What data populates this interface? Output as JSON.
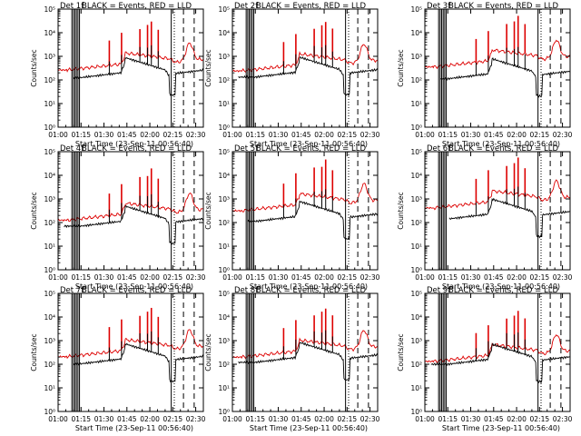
{
  "figure": {
    "legend_text": "BLACK = Events, RED = LLD",
    "xlabel": "Start Time (23-Sep-11 00:56:40)",
    "ylabel": "Counts/sec"
  },
  "colors": {
    "events": "#000000",
    "lld": "#dd0000",
    "axes": "#000000"
  },
  "chart_data": [
    {
      "type": "line",
      "title": "Det 1f",
      "events_start_min": 6,
      "lld_base": 2.42,
      "events_base": 2.1,
      "xlabel": "Start Time (23-Sep-11 00:56:40)",
      "ylabel": "Counts/sec",
      "xlim": [
        60,
        155
      ],
      "ylim_log10": [
        0,
        5
      ],
      "xticks": [
        60,
        75,
        90,
        105,
        120,
        135,
        150
      ],
      "xtick_labels": [
        "01:00",
        "01:15",
        "01:30",
        "01:45",
        "02:00",
        "02:15",
        "02:30"
      ],
      "ytick_labels": [
        "10⁰",
        "10¹",
        "10²",
        "10³",
        "10⁴",
        "10⁵"
      ],
      "solid_markers": [
        69,
        70,
        71,
        72,
        73,
        74,
        134
      ],
      "dashed_markers": [
        142,
        149
      ],
      "dotted_marker": 136,
      "series": [
        {
          "name": "Events",
          "color": "#000000",
          "values": "per-panel trace (log10 counts/sec)"
        },
        {
          "name": "LLD",
          "color": "#dd0000",
          "values": "per-panel trace (log10 counts/sec)"
        }
      ]
    },
    {
      "type": "line",
      "title": "Det 2f",
      "events_start_min": 0,
      "lld_base": 2.38,
      "events_base": 2.12,
      "xlabel": "Start Time (23-Sep-11 00:56:40)",
      "ylabel": "Counts/sec",
      "xlim": [
        60,
        155
      ],
      "ylim_log10": [
        0,
        5
      ],
      "xticks": [
        60,
        75,
        90,
        105,
        120,
        135,
        150
      ],
      "xtick_labels": [
        "01:00",
        "01:15",
        "01:30",
        "01:45",
        "02:00",
        "02:15",
        "02:30"
      ],
      "ytick_labels": [
        "10⁰",
        "10¹",
        "10²",
        "10³",
        "10⁴",
        "10⁵"
      ],
      "solid_markers": [
        69,
        70,
        71,
        72,
        73,
        74,
        134
      ],
      "dashed_markers": [
        142,
        149
      ],
      "dotted_marker": 136,
      "series": [
        {
          "name": "Events",
          "color": "#000000",
          "values": "per-panel trace (log10 counts/sec)"
        },
        {
          "name": "LLD",
          "color": "#dd0000",
          "values": "per-panel trace (log10 counts/sec)"
        }
      ]
    },
    {
      "type": "line",
      "title": "Det 3f",
      "events_start_min": 6,
      "lld_base": 2.55,
      "events_base": 2.05,
      "xlabel": "Start Time (23-Sep-11 00:56:40)",
      "ylabel": "Counts/sec",
      "xlim": [
        60,
        155
      ],
      "ylim_log10": [
        0,
        5
      ],
      "xticks": [
        60,
        75,
        90,
        105,
        120,
        135,
        150
      ],
      "xtick_labels": [
        "01:00",
        "01:15",
        "01:30",
        "01:45",
        "02:00",
        "02:15",
        "02:30"
      ],
      "ytick_labels": [
        "10⁰",
        "10¹",
        "10²",
        "10³",
        "10⁴",
        "10⁵"
      ],
      "solid_markers": [
        69,
        70,
        71,
        72,
        73,
        74,
        134
      ],
      "dashed_markers": [
        142,
        149
      ],
      "dotted_marker": 136,
      "series": [
        {
          "name": "Events",
          "color": "#000000",
          "values": "per-panel trace (log10 counts/sec)"
        },
        {
          "name": "LLD",
          "color": "#dd0000",
          "values": "per-panel trace (log10 counts/sec)"
        }
      ]
    },
    {
      "type": "line",
      "title": "Det 4f",
      "events_start_min": 0,
      "lld_base": 2.1,
      "events_base": 1.85,
      "xlabel": "Start Time (23-Sep-11 00:56:40)",
      "ylabel": "Counts/sec",
      "xlim": [
        60,
        155
      ],
      "ylim_log10": [
        0,
        5
      ],
      "xticks": [
        60,
        75,
        90,
        105,
        120,
        135,
        150
      ],
      "xtick_labels": [
        "01:00",
        "01:15",
        "01:30",
        "01:45",
        "02:00",
        "02:15",
        "02:30"
      ],
      "ytick_labels": [
        "10⁰",
        "10¹",
        "10²",
        "10³",
        "10⁴",
        "10⁵"
      ],
      "solid_markers": [
        69,
        70,
        71,
        72,
        73,
        74,
        134
      ],
      "dashed_markers": [
        142,
        149
      ],
      "dotted_marker": 136,
      "series": [
        {
          "name": "Events",
          "color": "#000000",
          "values": "per-panel trace (log10 counts/sec)"
        },
        {
          "name": "LLD",
          "color": "#dd0000",
          "values": "per-panel trace (log10 counts/sec)"
        }
      ]
    },
    {
      "type": "line",
      "title": "Det 5f",
      "events_start_min": 6,
      "lld_base": 2.5,
      "events_base": 2.05,
      "xlabel": "Start Time (23-Sep-11 00:56:40)",
      "ylabel": "Counts/sec",
      "xlim": [
        60,
        155
      ],
      "ylim_log10": [
        0,
        5
      ],
      "xticks": [
        60,
        75,
        90,
        105,
        120,
        135,
        150
      ],
      "xtick_labels": [
        "01:00",
        "01:15",
        "01:30",
        "01:45",
        "02:00",
        "02:15",
        "02:30"
      ],
      "ytick_labels": [
        "10⁰",
        "10¹",
        "10²",
        "10³",
        "10⁴",
        "10⁵"
      ],
      "solid_markers": [
        69,
        70,
        71,
        72,
        73,
        74,
        134
      ],
      "dashed_markers": [
        142,
        149
      ],
      "dotted_marker": 136,
      "series": [
        {
          "name": "Events",
          "color": "#000000",
          "values": "per-panel trace (log10 counts/sec)"
        },
        {
          "name": "LLD",
          "color": "#dd0000",
          "values": "per-panel trace (log10 counts/sec)"
        }
      ]
    },
    {
      "type": "line",
      "title": "Det 6f",
      "events_start_min": 12,
      "lld_base": 2.62,
      "events_base": 2.15,
      "xlabel": "Start Time (23-Sep-11 00:56:40)",
      "ylabel": "Counts/sec",
      "xlim": [
        60,
        155
      ],
      "ylim_log10": [
        0,
        5
      ],
      "xticks": [
        60,
        75,
        90,
        105,
        120,
        135,
        150
      ],
      "xtick_labels": [
        "01:00",
        "01:15",
        "01:30",
        "01:45",
        "02:00",
        "02:15",
        "02:30"
      ],
      "ytick_labels": [
        "10⁰",
        "10¹",
        "10²",
        "10³",
        "10⁴",
        "10⁵"
      ],
      "solid_markers": [
        69,
        70,
        71,
        72,
        73,
        74,
        134
      ],
      "dashed_markers": [
        142,
        149
      ],
      "dotted_marker": 136,
      "series": [
        {
          "name": "Events",
          "color": "#000000",
          "values": "per-panel trace (log10 counts/sec)"
        },
        {
          "name": "LLD",
          "color": "#dd0000",
          "values": "per-panel trace (log10 counts/sec)"
        }
      ]
    },
    {
      "type": "line",
      "title": "Det 7f",
      "events_start_min": 6,
      "lld_base": 2.32,
      "events_base": 2.02,
      "xlabel": "Start Time (23-Sep-11 00:56:40)",
      "ylabel": "Counts/sec",
      "xlim": [
        60,
        155
      ],
      "ylim_log10": [
        0,
        5
      ],
      "xticks": [
        60,
        75,
        90,
        105,
        120,
        135,
        150
      ],
      "xtick_labels": [
        "01:00",
        "01:15",
        "01:30",
        "01:45",
        "02:00",
        "02:15",
        "02:30"
      ],
      "ytick_labels": [
        "10⁰",
        "10¹",
        "10²",
        "10³",
        "10⁴",
        "10⁵"
      ],
      "solid_markers": [
        69,
        70,
        71,
        72,
        73,
        74,
        134
      ],
      "dashed_markers": [
        142,
        149
      ],
      "dotted_marker": 136,
      "series": [
        {
          "name": "Events",
          "color": "#000000",
          "values": "per-panel trace (log10 counts/sec)"
        },
        {
          "name": "LLD",
          "color": "#dd0000",
          "values": "per-panel trace (log10 counts/sec)"
        }
      ]
    },
    {
      "type": "line",
      "title": "Det 8f",
      "events_start_min": 0,
      "lld_base": 2.3,
      "events_base": 2.08,
      "xlabel": "Start Time (23-Sep-11 00:56:40)",
      "ylabel": "Counts/sec",
      "xlim": [
        60,
        155
      ],
      "ylim_log10": [
        0,
        5
      ],
      "xticks": [
        60,
        75,
        90,
        105,
        120,
        135,
        150
      ],
      "xtick_labels": [
        "01:00",
        "01:15",
        "01:30",
        "01:45",
        "02:00",
        "02:15",
        "02:30"
      ],
      "ytick_labels": [
        "10⁰",
        "10¹",
        "10²",
        "10³",
        "10⁴",
        "10⁵"
      ],
      "solid_markers": [
        69,
        70,
        71,
        72,
        73,
        74,
        134
      ],
      "dashed_markers": [
        142,
        149
      ],
      "dotted_marker": 136,
      "series": [
        {
          "name": "Events",
          "color": "#000000",
          "values": "per-panel trace (log10 counts/sec)"
        },
        {
          "name": "LLD",
          "color": "#dd0000",
          "values": "per-panel trace (log10 counts/sec)"
        }
      ]
    },
    {
      "type": "line",
      "title": "Det 9f",
      "events_start_min": 0,
      "lld_base": 2.12,
      "events_base": 2.0,
      "xlabel": "Start Time (23-Sep-11 00:56:40)",
      "ylabel": "Counts/sec",
      "xlim": [
        60,
        155
      ],
      "ylim_log10": [
        0,
        5
      ],
      "xticks": [
        60,
        75,
        90,
        105,
        120,
        135,
        150
      ],
      "xtick_labels": [
        "01:00",
        "01:15",
        "01:30",
        "01:45",
        "02:00",
        "02:15",
        "02:30"
      ],
      "ytick_labels": [
        "10⁰",
        "10¹",
        "10²",
        "10³",
        "10⁴",
        "10⁵"
      ],
      "solid_markers": [
        69,
        70,
        71,
        72,
        73,
        74,
        134
      ],
      "dashed_markers": [
        142,
        149
      ],
      "dotted_marker": 136,
      "series": [
        {
          "name": "Events",
          "color": "#000000",
          "values": "per-panel trace (log10 counts/sec)"
        },
        {
          "name": "LLD",
          "color": "#dd0000",
          "values": "per-panel trace (log10 counts/sec)"
        }
      ]
    }
  ]
}
